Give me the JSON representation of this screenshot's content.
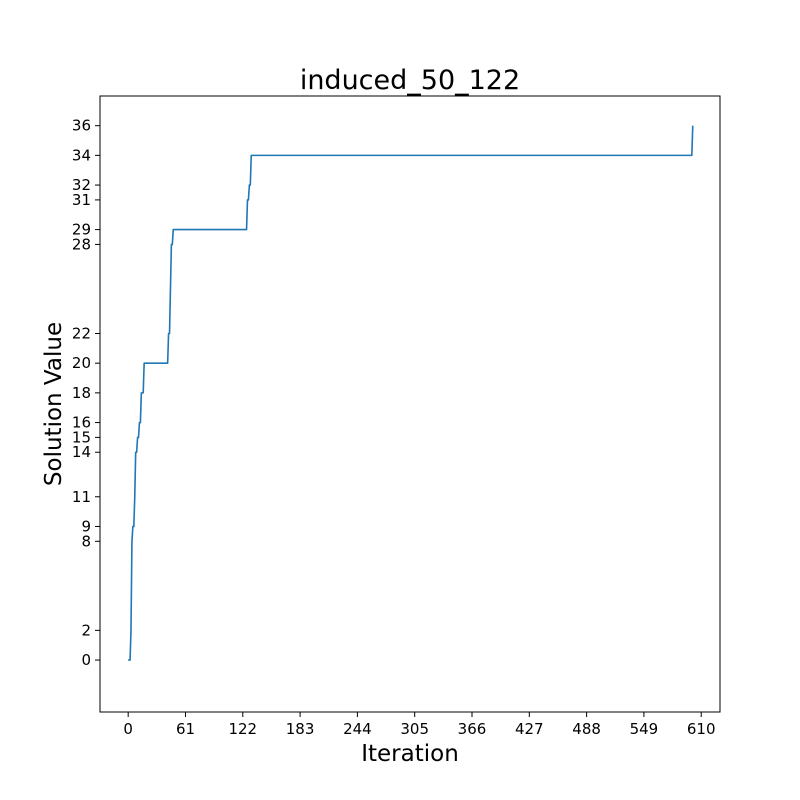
{
  "chart_data": {
    "type": "line",
    "title": "induced_50_122",
    "xlabel": "Iteration",
    "ylabel": "Solution Value",
    "xlim": [
      -30,
      630
    ],
    "ylim": [
      -3.5,
      38
    ],
    "grid": false,
    "xticks": [
      0,
      61,
      122,
      183,
      244,
      305,
      366,
      427,
      488,
      549,
      610
    ],
    "yticks": [
      0,
      2,
      8,
      9,
      11,
      14,
      15,
      16,
      18,
      20,
      22,
      28,
      29,
      31,
      32,
      34,
      36
    ],
    "series": [
      {
        "color": "#1f77b4",
        "x": [
          0,
          2,
          3,
          4,
          5,
          6,
          7,
          8,
          9,
          10,
          11,
          12,
          13,
          14,
          16,
          17,
          18,
          42,
          43,
          44,
          46,
          47,
          48,
          50,
          126,
          127,
          128,
          129,
          130,
          131,
          132,
          133,
          134,
          135,
          600,
          601
        ],
        "y": [
          0,
          0,
          2,
          8,
          9,
          9,
          11,
          14,
          14,
          15,
          15,
          16,
          16,
          18,
          18,
          20,
          20,
          20,
          22,
          22,
          28,
          28,
          29,
          29,
          29,
          31,
          31,
          32,
          32,
          34,
          34,
          34,
          34,
          34,
          34,
          36
        ]
      }
    ]
  }
}
